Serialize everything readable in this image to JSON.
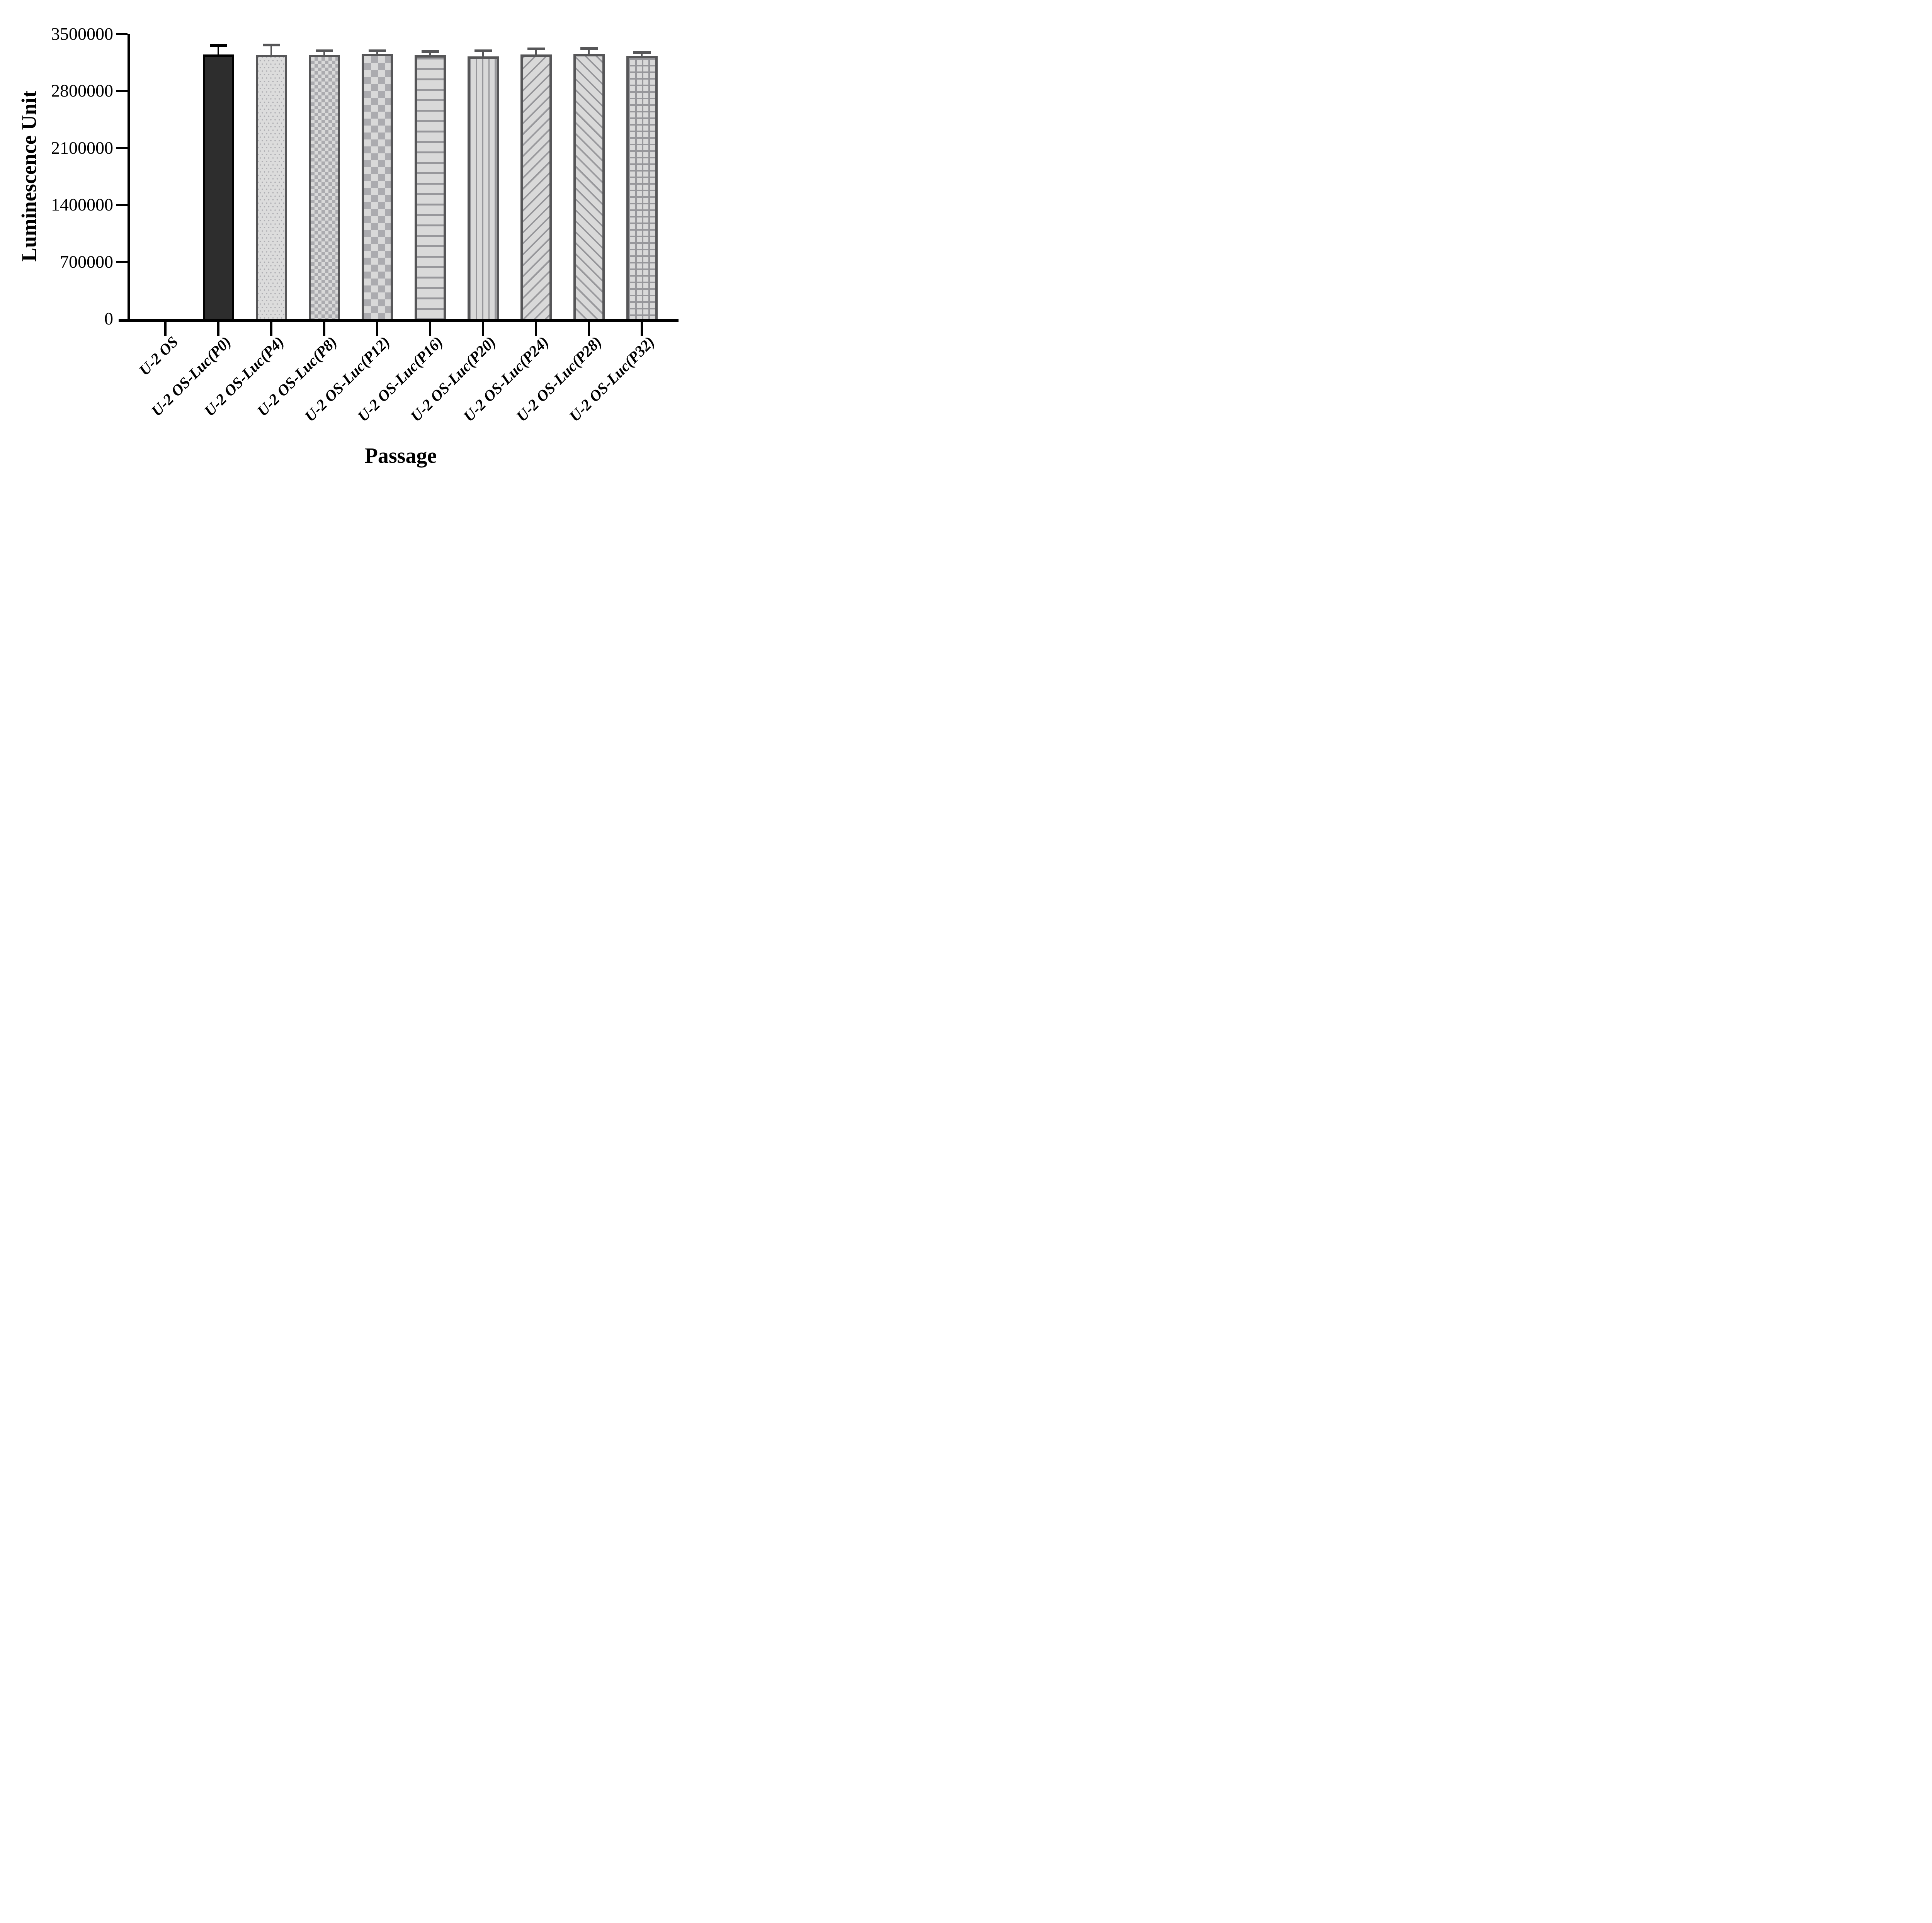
{
  "chart_data": {
    "type": "bar",
    "title": "",
    "xlabel": "Passage",
    "ylabel": "Luminescence Unit",
    "ylim": [
      0,
      3500000
    ],
    "ytick_values": [
      0,
      700000,
      1400000,
      2100000,
      2800000,
      3500000
    ],
    "ytick_labels": [
      "0",
      "700000",
      "1400000",
      "2100000",
      "2800000",
      "3500000"
    ],
    "categories": [
      "U-2 OS",
      "U-2 OS-Luc(P0)",
      "U-2 OS-Luc(P4)",
      "U-2 OS-Luc(P8)",
      "U-2 OS-Luc(P12)",
      "U-2 OS-Luc(P16)",
      "U-2 OS-Luc(P20)",
      "U-2 OS-Luc(P24)",
      "U-2 OS-Luc(P28)",
      "U-2 OS-Luc(P32)"
    ],
    "series": [
      {
        "name": "Luminescence Unit",
        "values": [
          0,
          3250000,
          3245000,
          3245000,
          3260000,
          3240000,
          3225000,
          3250000,
          3255000,
          3230000
        ],
        "errors_plus": [
          0,
          110000,
          120000,
          47000,
          35000,
          45000,
          70000,
          65000,
          65000,
          45000
        ]
      }
    ],
    "bar_patterns": [
      "none",
      "solid-dark",
      "dots",
      "check-small",
      "check-large",
      "hlines",
      "vlines",
      "diag-up",
      "diag-down",
      "grid"
    ],
    "legend_position": "none",
    "grid": false
  },
  "style": {
    "background": "#ffffff",
    "axis_color": "#000000",
    "text_color": "#000000",
    "dark_bar_fill": "#2d2d2d",
    "dark_bar_border": "#000000",
    "gray_bar_fill": "#d9d9d9",
    "gray_bar_border": "#565658",
    "pattern_line_color": "#97979b"
  }
}
